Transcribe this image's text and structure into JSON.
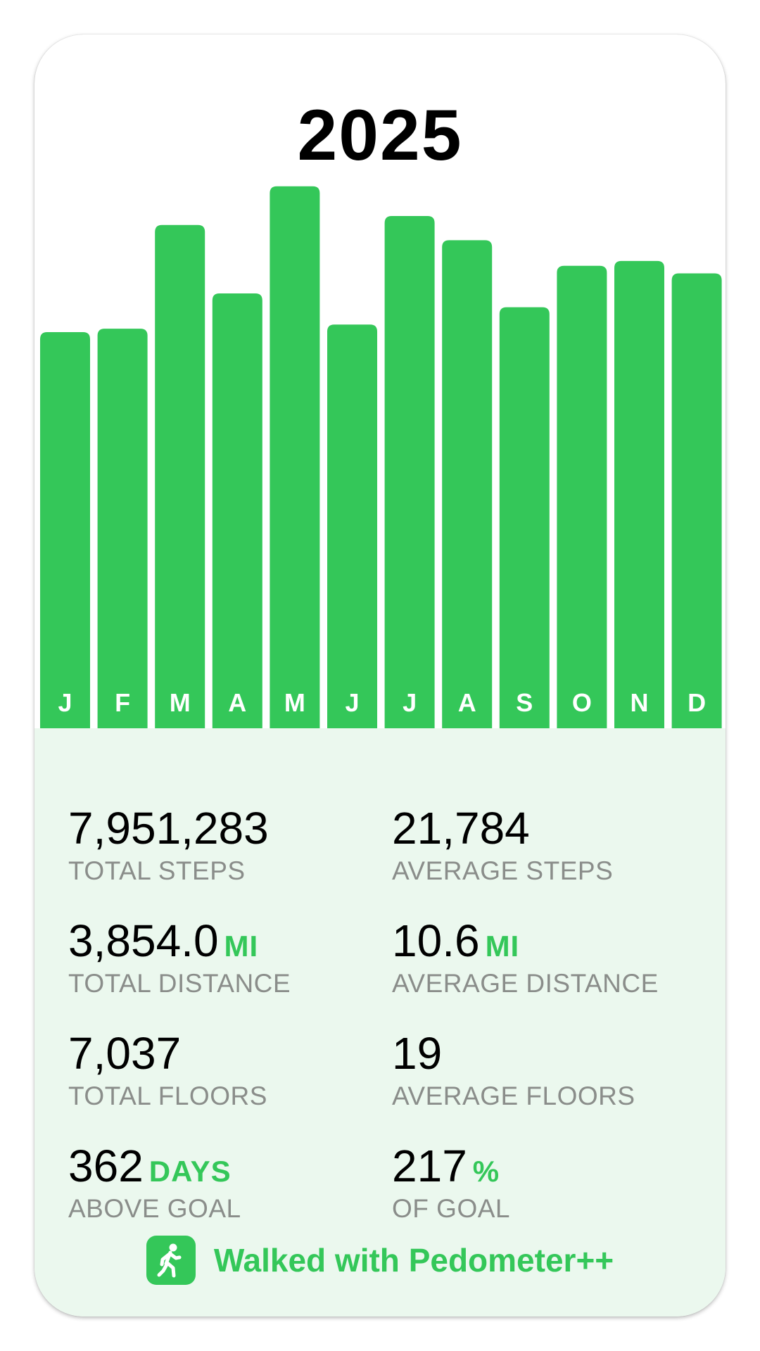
{
  "title": "2025",
  "colors": {
    "accent": "#34c759",
    "stats_background": "#ebf8ee",
    "label_gray": "#8a8d8a"
  },
  "chart_data": {
    "type": "bar",
    "categories": [
      "J",
      "F",
      "M",
      "A",
      "M",
      "J",
      "J",
      "A",
      "S",
      "O",
      "N",
      "D"
    ],
    "values": [
      573,
      578,
      728,
      629,
      784,
      584,
      741,
      706,
      609,
      669,
      676,
      658
    ],
    "ylim": [
      0,
      800
    ],
    "grid": false,
    "legend": "none"
  },
  "stats": {
    "total_steps": {
      "value": "7,951,283",
      "unit": "",
      "label": "TOTAL STEPS"
    },
    "average_steps": {
      "value": "21,784",
      "unit": "",
      "label": "AVERAGE STEPS"
    },
    "total_distance": {
      "value": "3,854.0",
      "unit": "MI",
      "label": "TOTAL DISTANCE"
    },
    "average_distance": {
      "value": "10.6",
      "unit": "MI",
      "label": "AVERAGE DISTANCE"
    },
    "total_floors": {
      "value": "7,037",
      "unit": "",
      "label": "TOTAL FLOORS"
    },
    "average_floors": {
      "value": "19",
      "unit": "",
      "label": "AVERAGE FLOORS"
    },
    "days_above_goal": {
      "value": "362",
      "unit": "DAYS",
      "label": "ABOVE GOAL"
    },
    "percent_of_goal": {
      "value": "217",
      "unit": "%",
      "label": "OF GOAL"
    }
  },
  "footer": {
    "icon": "walking-person-icon",
    "text": "Walked with Pedometer++"
  }
}
